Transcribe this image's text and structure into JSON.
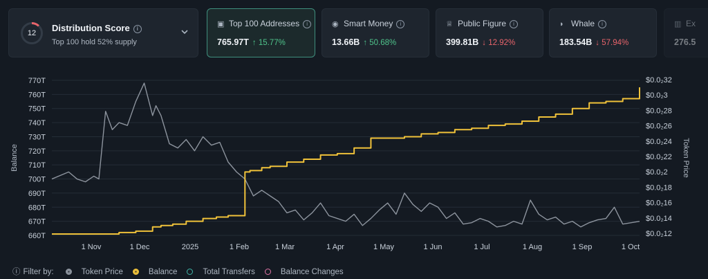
{
  "distribution": {
    "score": "12",
    "title": "Distribution Score",
    "subtitle": "Top 100 hold 52% supply",
    "score_fraction": 0.12
  },
  "cards": [
    {
      "title": "Top 100 Addresses",
      "value": "765.97T",
      "change": "↑ 15.77%",
      "direction": "up",
      "icon": "wallet-icon"
    },
    {
      "title": "Smart Money",
      "value": "13.66B",
      "change": "↑ 50.68%",
      "direction": "up",
      "icon": "smart-money-icon"
    },
    {
      "title": "Public Figure",
      "value": "399.81B",
      "change": "↓ 12.92%",
      "direction": "down",
      "icon": "public-figure-icon"
    },
    {
      "title": "Whale",
      "value": "183.54B",
      "change": "↓ 57.94%",
      "direction": "down",
      "icon": "whale-icon"
    },
    {
      "title": "Ex",
      "value": "276.5",
      "icon": "exchange-icon"
    }
  ],
  "chart_data": {
    "type": "line",
    "ylabel": "Balance",
    "y2label": "Token Price",
    "y_ticks": [
      "660T",
      "670T",
      "680T",
      "690T",
      "700T",
      "710T",
      "720T",
      "730T",
      "740T",
      "750T",
      "760T",
      "770T"
    ],
    "y2_ticks": [
      "$0.0₂12",
      "$0.0₂14",
      "$0.0₂16",
      "$0.0₂18",
      "$0.0₂2",
      "$0.0₂22",
      "$0.0₂24",
      "$0.0₂26",
      "$0.0₂28",
      "$0.0₂3",
      "$0.0₂32"
    ],
    "x_ticks": [
      "1 Nov",
      "1 Dec",
      "2025",
      "1 Feb",
      "1 Mar",
      "1 Apr",
      "1 May",
      "1 Jun",
      "1 Jul",
      "1 Aug",
      "1 Sep",
      "1 Oct"
    ],
    "ylim": [
      660,
      770
    ],
    "series": [
      {
        "name": "Balance",
        "color": "#f0c23a",
        "x": [
          0,
          30,
          40,
          50,
          60,
          65,
          72,
          80,
          90,
          98,
          105,
          110,
          115,
          118,
          125,
          130,
          140,
          150,
          160,
          170,
          180,
          190,
          200,
          210,
          220,
          230,
          240,
          250,
          260,
          270,
          280,
          290,
          300,
          310,
          320,
          330,
          340,
          350
        ],
        "values": [
          661,
          661,
          662,
          663,
          666,
          667,
          668,
          670,
          672,
          673,
          674,
          674,
          705,
          706,
          708,
          709,
          712,
          714,
          717,
          718,
          722,
          729,
          729,
          730,
          732,
          733,
          735,
          736,
          738,
          739,
          741,
          744,
          746,
          750,
          754,
          755,
          757,
          765
        ]
      },
      {
        "name": "Token Price",
        "color": "#8d949e",
        "x": [
          0,
          10,
          15,
          20,
          25,
          28,
          32,
          36,
          40,
          45,
          50,
          55,
          60,
          62,
          65,
          70,
          75,
          80,
          85,
          90,
          95,
          100,
          105,
          110,
          115,
          120,
          125,
          130,
          135,
          140,
          145,
          150,
          155,
          160,
          165,
          170,
          175,
          180,
          185,
          190,
          195,
          200,
          205,
          210,
          215,
          220,
          225,
          230,
          235,
          240,
          245,
          250,
          255,
          260,
          265,
          270,
          275,
          280,
          285,
          290,
          295,
          300,
          305,
          310,
          315,
          320,
          325,
          330,
          335,
          340,
          345,
          350
        ],
        "values": [
          700,
          705,
          700,
          698,
          702,
          700,
          748,
          735,
          740,
          738,
          755,
          768,
          745,
          752,
          745,
          725,
          722,
          728,
          720,
          730,
          724,
          726,
          712,
          705,
          700,
          688,
          692,
          688,
          684,
          676,
          678,
          671,
          676,
          683,
          674,
          672,
          670,
          675,
          667,
          672,
          678,
          683,
          675,
          690,
          682,
          677,
          683,
          680,
          672,
          676,
          668,
          669,
          672,
          670,
          666,
          667,
          670,
          668,
          685,
          675,
          671,
          673,
          668,
          670,
          666,
          669,
          671,
          672,
          680,
          668,
          669,
          670
        ]
      }
    ]
  },
  "filter": {
    "label": "Filter by:",
    "items": [
      {
        "label": "Token Price",
        "color": "#8d949e",
        "filled": true
      },
      {
        "label": "Balance",
        "color": "#f0c23a",
        "filled": true
      },
      {
        "label": "Total Transfers",
        "color": "#3fb6a8",
        "filled": false
      },
      {
        "label": "Balance Changes",
        "color": "#e074a6",
        "filled": false
      }
    ]
  }
}
